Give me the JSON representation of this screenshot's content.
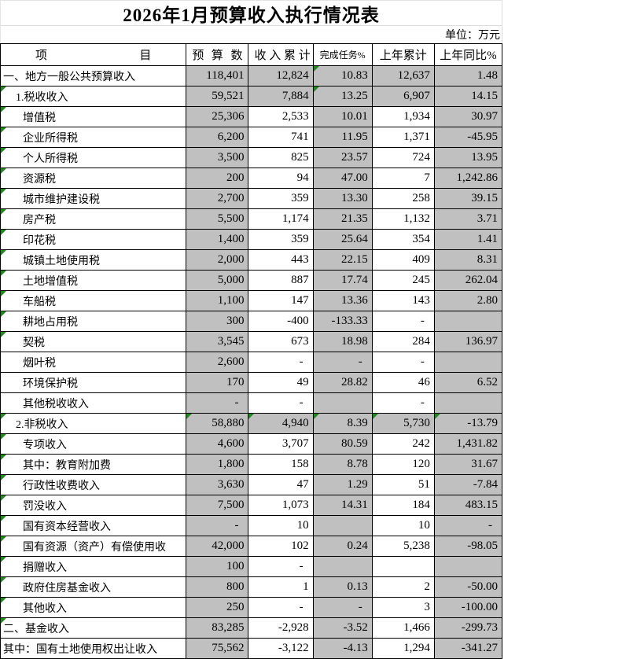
{
  "title": "2026年1月预算收入执行情况表",
  "unit_label": "单位：万元",
  "columns": [
    "项 目",
    "预 算 数",
    "收 入 累 计",
    "完成任务%",
    "上年累计",
    "上年同比%"
  ],
  "colors": {
    "shaded_cell": "#c0c0c0",
    "table_border": "#000000",
    "sheet_gridline": "#dcdcdc",
    "error_indicator_green": "#1e8a1e"
  },
  "rows": [
    {
      "item": "一、地方一般公共预算收入",
      "indent": 0,
      "tri": false,
      "vflags": [
        0,
        0,
        1,
        0,
        0
      ],
      "shaded": [
        1,
        1,
        1,
        1,
        1
      ],
      "values": [
        "118,401",
        "12,824",
        "10.83",
        "12,637",
        "1.48"
      ]
    },
    {
      "item": "1.税收收入",
      "indent": 1,
      "tri": true,
      "vflags": [
        0,
        0,
        1,
        0,
        0
      ],
      "shaded": [
        1,
        1,
        1,
        1,
        1
      ],
      "values": [
        "59,521",
        "7,884",
        "13.25",
        "6,907",
        "14.15"
      ]
    },
    {
      "item": "增值税",
      "indent": 2,
      "tri": true,
      "shaded": [
        1,
        0,
        1,
        0,
        1
      ],
      "values": [
        "25,306",
        "2,533",
        "10.01",
        "1,934",
        "30.97"
      ]
    },
    {
      "item": "企业所得税",
      "indent": 2,
      "tri": true,
      "shaded": [
        1,
        0,
        1,
        0,
        1
      ],
      "values": [
        "6,200",
        "741",
        "11.95",
        "1,371",
        "-45.95"
      ]
    },
    {
      "item": "个人所得税",
      "indent": 2,
      "tri": true,
      "shaded": [
        1,
        0,
        1,
        0,
        1
      ],
      "values": [
        "3,500",
        "825",
        "23.57",
        "724",
        "13.95"
      ]
    },
    {
      "item": "资源税",
      "indent": 2,
      "tri": true,
      "shaded": [
        1,
        0,
        1,
        0,
        1
      ],
      "values": [
        "200",
        "94",
        "47.00",
        "7",
        "1,242.86"
      ]
    },
    {
      "item": "城市维护建设税",
      "indent": 2,
      "tri": true,
      "shaded": [
        1,
        0,
        1,
        0,
        1
      ],
      "values": [
        "2,700",
        "359",
        "13.30",
        "258",
        "39.15"
      ]
    },
    {
      "item": "房产税",
      "indent": 2,
      "tri": true,
      "shaded": [
        1,
        0,
        1,
        0,
        1
      ],
      "values": [
        "5,500",
        "1,174",
        "21.35",
        "1,132",
        "3.71"
      ]
    },
    {
      "item": "印花税",
      "indent": 2,
      "tri": true,
      "shaded": [
        1,
        0,
        1,
        0,
        1
      ],
      "values": [
        "1,400",
        "359",
        "25.64",
        "354",
        "1.41"
      ]
    },
    {
      "item": "城镇土地使用税",
      "indent": 2,
      "tri": true,
      "shaded": [
        1,
        0,
        1,
        0,
        1
      ],
      "values": [
        "2,000",
        "443",
        "22.15",
        "409",
        "8.31"
      ]
    },
    {
      "item": "土地增值税",
      "indent": 2,
      "tri": true,
      "shaded": [
        1,
        0,
        1,
        0,
        1
      ],
      "values": [
        "5,000",
        "887",
        "17.74",
        "245",
        "262.04"
      ]
    },
    {
      "item": "车船税",
      "indent": 2,
      "tri": true,
      "shaded": [
        1,
        0,
        1,
        0,
        1
      ],
      "values": [
        "1,100",
        "147",
        "13.36",
        "143",
        "2.80"
      ]
    },
    {
      "item": "耕地占用税",
      "indent": 2,
      "tri": true,
      "shaded": [
        1,
        0,
        1,
        0,
        1
      ],
      "values": [
        "300",
        "-400",
        "-133.33",
        "-",
        ""
      ]
    },
    {
      "item": "契税",
      "indent": 2,
      "tri": true,
      "shaded": [
        1,
        0,
        1,
        0,
        1
      ],
      "values": [
        "3,545",
        "673",
        "18.98",
        "284",
        "136.97"
      ]
    },
    {
      "item": "烟叶税",
      "indent": 2,
      "tri": false,
      "shaded": [
        1,
        0,
        1,
        0,
        1
      ],
      "values": [
        "2,600",
        "-",
        "-",
        "-",
        ""
      ]
    },
    {
      "item": "环境保护税",
      "indent": 2,
      "tri": false,
      "shaded": [
        1,
        0,
        1,
        0,
        1
      ],
      "values": [
        "170",
        "49",
        "28.82",
        "46",
        "6.52"
      ]
    },
    {
      "item": "其他税收收入",
      "indent": 2,
      "tri": false,
      "shaded": [
        1,
        0,
        1,
        0,
        1
      ],
      "values": [
        "-",
        "-",
        "",
        "-",
        ""
      ]
    },
    {
      "item": "2.非税收入",
      "indent": 1,
      "tri": true,
      "vflags": [
        1,
        1,
        1,
        1,
        1
      ],
      "shaded": [
        1,
        1,
        1,
        1,
        1
      ],
      "values": [
        "58,880",
        "4,940",
        "8.39",
        "5,730",
        "-13.79"
      ]
    },
    {
      "item": "专项收入",
      "indent": 2,
      "tri": true,
      "shaded": [
        1,
        0,
        1,
        0,
        1
      ],
      "values": [
        "4,600",
        "3,707",
        "80.59",
        "242",
        "1,431.82"
      ]
    },
    {
      "item": "其中：教育附加费",
      "indent": 2,
      "tri": true,
      "shaded": [
        1,
        0,
        1,
        0,
        1
      ],
      "values": [
        "1,800",
        "158",
        "8.78",
        "120",
        "31.67"
      ]
    },
    {
      "item": "行政性收费收入",
      "indent": 2,
      "tri": true,
      "shaded": [
        1,
        0,
        1,
        0,
        1
      ],
      "values": [
        "3,630",
        "47",
        "1.29",
        "51",
        "-7.84"
      ]
    },
    {
      "item": "罚没收入",
      "indent": 2,
      "tri": true,
      "shaded": [
        1,
        0,
        1,
        0,
        1
      ],
      "values": [
        "7,500",
        "1,073",
        "14.31",
        "184",
        "483.15"
      ]
    },
    {
      "item": "国有资本经营收入",
      "indent": 2,
      "tri": true,
      "shaded": [
        1,
        0,
        1,
        0,
        1
      ],
      "values": [
        "-",
        "10",
        "",
        "10",
        "-"
      ]
    },
    {
      "item": "国有资源（资产）有偿使用收",
      "indent": 2,
      "tri": true,
      "shaded": [
        1,
        0,
        1,
        0,
        1
      ],
      "values": [
        "42,000",
        "102",
        "0.24",
        "5,238",
        "-98.05"
      ]
    },
    {
      "item": "捐赠收入",
      "indent": 2,
      "tri": true,
      "shaded": [
        1,
        0,
        1,
        0,
        1
      ],
      "values": [
        "100",
        "-",
        "",
        "",
        ""
      ]
    },
    {
      "item": "政府住房基金收入",
      "indent": 2,
      "tri": true,
      "shaded": [
        1,
        0,
        1,
        0,
        1
      ],
      "values": [
        "800",
        "1",
        "0.13",
        "2",
        "-50.00"
      ]
    },
    {
      "item": "其他收入",
      "indent": 2,
      "tri": true,
      "shaded": [
        1,
        0,
        1,
        0,
        1
      ],
      "values": [
        "250",
        "-",
        "-",
        "3",
        "-100.00"
      ]
    },
    {
      "item": "二、基金收入",
      "indent": 0,
      "tri": true,
      "shaded": [
        1,
        0,
        1,
        0,
        1
      ],
      "values": [
        "83,285",
        "-2,928",
        "-3.52",
        "1,466",
        "-299.73"
      ]
    },
    {
      "item": "其中：国有土地使用权出让收入",
      "indent": 0,
      "tri": false,
      "shaded": [
        1,
        0,
        1,
        0,
        1
      ],
      "values": [
        "75,562",
        "-3,122",
        "-4.13",
        "1,294",
        "-341.27"
      ]
    }
  ]
}
